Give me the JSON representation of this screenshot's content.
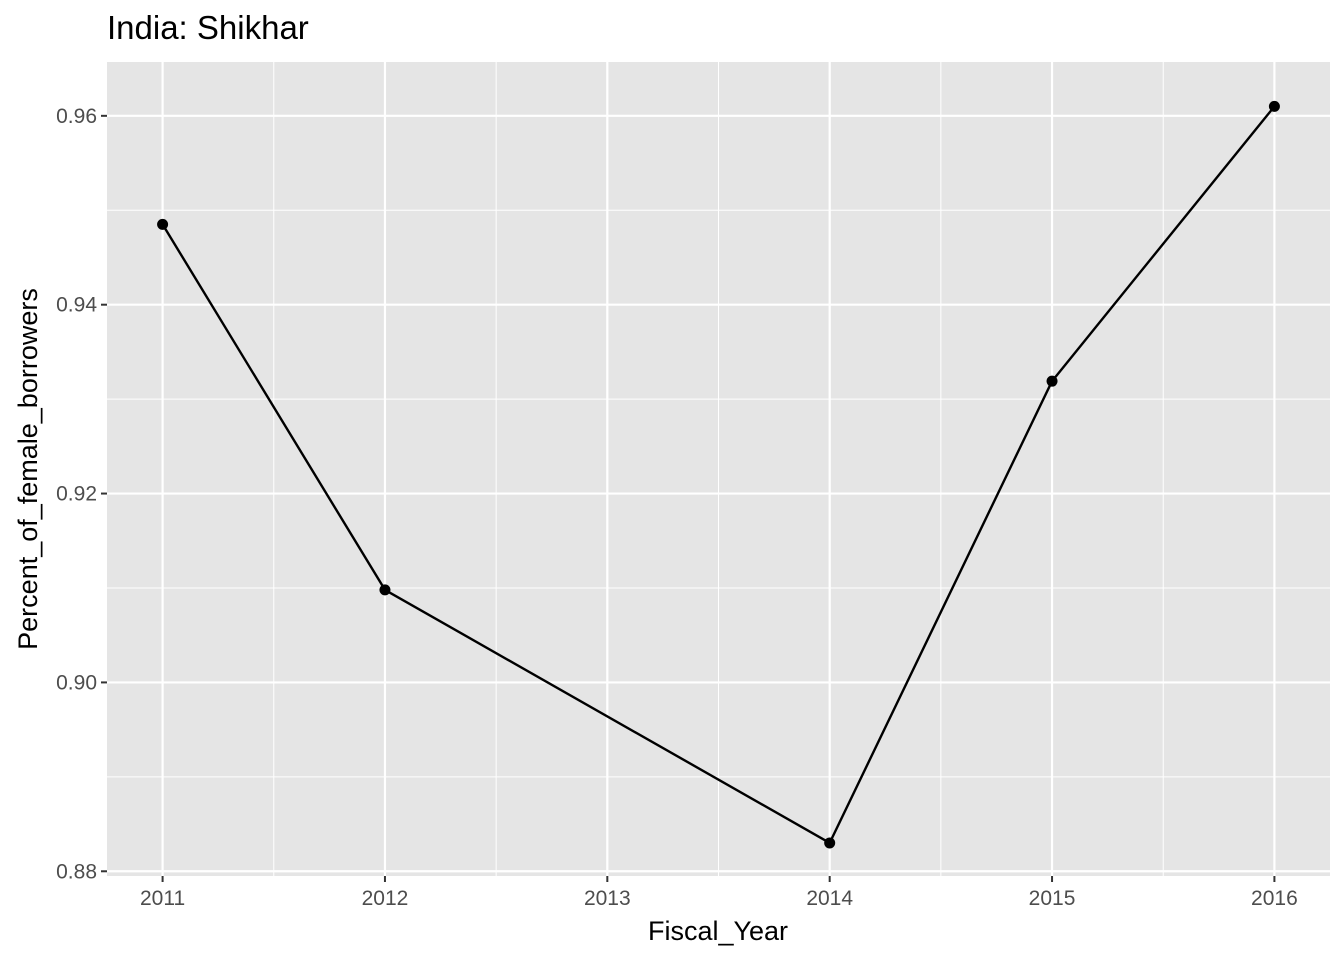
{
  "chart_data": {
    "type": "line",
    "title": "India:  Shikhar",
    "xlabel": "Fiscal_Year",
    "ylabel": "Percent_of_female_borrowers",
    "x": [
      2011,
      2012,
      2014,
      2015,
      2016
    ],
    "series": [
      {
        "values": [
          0.9485,
          0.9098,
          0.883,
          0.9319,
          0.961
        ]
      }
    ],
    "x_ticks": [
      "2011",
      "2012",
      "2013",
      "2014",
      "2015",
      "2016"
    ],
    "y_ticks": [
      "0.88",
      "0.90",
      "0.92",
      "0.94",
      "0.96"
    ],
    "xlim": [
      2010.75,
      2016.25
    ],
    "ylim": [
      0.8795,
      0.9657
    ],
    "grid": true,
    "markers": true,
    "colors": {
      "panel": "#e5e5e5",
      "grid": "#ffffff",
      "line": "#000000",
      "tick_text": "#4d4d4d",
      "axis_text": "#000000"
    }
  }
}
